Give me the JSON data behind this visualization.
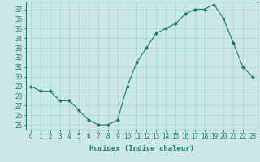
{
  "x": [
    0,
    1,
    2,
    3,
    4,
    5,
    6,
    7,
    8,
    9,
    10,
    11,
    12,
    13,
    14,
    15,
    16,
    17,
    18,
    19,
    20,
    21,
    22,
    23
  ],
  "y": [
    29,
    28.5,
    28.5,
    27.5,
    27.5,
    26.5,
    25.5,
    25.0,
    25.0,
    25.5,
    29.0,
    31.5,
    33.0,
    34.5,
    35.0,
    35.5,
    36.5,
    37.0,
    37.0,
    37.5,
    36.0,
    33.5,
    31.0,
    30.0
  ],
  "xlabel": "Humidex (Indice chaleur)",
  "ylim": [
    24.5,
    37.8
  ],
  "xlim": [
    -0.5,
    23.5
  ],
  "yticks": [
    25,
    26,
    27,
    28,
    29,
    30,
    31,
    32,
    33,
    34,
    35,
    36,
    37
  ],
  "xticks": [
    0,
    1,
    2,
    3,
    4,
    5,
    6,
    7,
    8,
    9,
    10,
    11,
    12,
    13,
    14,
    15,
    16,
    17,
    18,
    19,
    20,
    21,
    22,
    23
  ],
  "line_color": "#1a7a6e",
  "marker_color": "#1a7a6e",
  "bg_color": "#cce8e6",
  "grid_color": "#a8d4d0",
  "label_fontsize": 6.5,
  "tick_fontsize": 5.5
}
